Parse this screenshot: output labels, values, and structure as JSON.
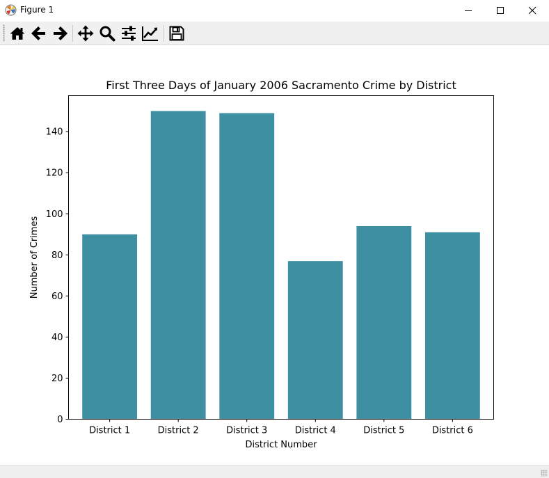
{
  "window": {
    "title": "Figure 1",
    "controls": [
      "minimize-icon",
      "maximize-icon",
      "close-icon"
    ]
  },
  "toolbar": {
    "tools": [
      {
        "name": "home",
        "icon": "home-icon"
      },
      {
        "name": "back",
        "icon": "arrow-left-icon"
      },
      {
        "name": "forward",
        "icon": "arrow-right-icon"
      },
      {
        "name": "pan",
        "icon": "move-icon"
      },
      {
        "name": "zoom",
        "icon": "magnifier-icon"
      },
      {
        "name": "configure-subplots",
        "icon": "sliders-icon"
      },
      {
        "name": "edit-axis",
        "icon": "line-chart-icon"
      },
      {
        "name": "save",
        "icon": "floppy-disk-icon"
      }
    ]
  },
  "chart_data": {
    "type": "bar",
    "title": "First Three Days of January 2006 Sacramento Crime by District",
    "xlabel": "District Number",
    "ylabel": "Number of Crimes",
    "categories": [
      "District 1",
      "District 2",
      "District 3",
      "District 4",
      "District 5",
      "District 6"
    ],
    "values": [
      90,
      150,
      149,
      77,
      94,
      91
    ],
    "ylim": [
      0,
      157.5
    ],
    "yticks": [
      0,
      20,
      40,
      60,
      80,
      100,
      120,
      140
    ],
    "bar_color": "#3f8fa3",
    "grid": false,
    "legend": "none"
  }
}
